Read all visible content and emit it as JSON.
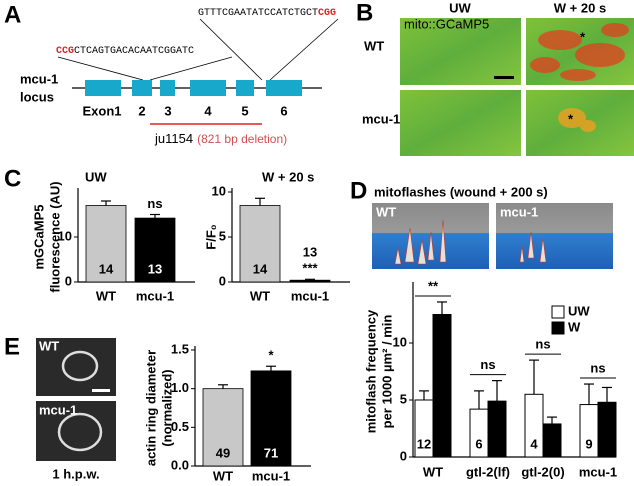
{
  "panels": {
    "labels": [
      "A",
      "B",
      "C",
      "D",
      "E"
    ],
    "a": {
      "seq_top": "GTTTCGAATATCCATCTGCT",
      "seq_top_pam": "CGG",
      "seq_bottom_pam": "CCG",
      "seq_bottom": "CTCAGTGACACAATCGGATC",
      "locus": [
        "mcu-1",
        "locus"
      ],
      "exons": [
        "Exon1",
        "2",
        "3",
        "4",
        "5",
        "6"
      ],
      "allele": "ju1154",
      "deletion": "(821 bp deletion)"
    },
    "b": {
      "columns": [
        "UW",
        "W + 20 s"
      ],
      "rows": [
        "WT",
        "mcu-1"
      ],
      "reporter": "mito::GCaMP5",
      "markers": [
        "*",
        "*"
      ]
    },
    "d": {
      "title": "mitoflashes (wound + 200 s)",
      "images": [
        "WT",
        "mcu-1"
      ]
    },
    "e": {
      "images": [
        "WT",
        "mcu-1"
      ],
      "caption": "1 h.p.w."
    }
  },
  "chart_data": [
    {
      "type": "bar",
      "title": "UW",
      "ylabel": [
        "mGCaMP5",
        "fluorescence (AU)"
      ],
      "categories": [
        "WT",
        "mcu-1"
      ],
      "values": [
        17,
        14.2
      ],
      "errors": [
        1,
        0.8
      ],
      "colors": [
        "#c8c8c8",
        "#000000"
      ],
      "n_labels": [
        "14",
        "13"
      ],
      "significance": [
        null,
        "ns"
      ],
      "ylim": [
        0,
        20
      ],
      "yticks": [
        0,
        10
      ]
    },
    {
      "type": "bar",
      "title": "W + 20 s",
      "ylabel": [
        "F/F₀"
      ],
      "categories": [
        "WT",
        "mcu-1"
      ],
      "values": [
        8.5,
        0.2
      ],
      "errors": [
        0.8,
        0.1
      ],
      "colors": [
        "#c8c8c8",
        "#000000"
      ],
      "n_labels": [
        "14",
        "13"
      ],
      "significance": [
        null,
        "***"
      ],
      "ylim": [
        0,
        10
      ],
      "yticks": [
        0,
        5,
        10
      ]
    },
    {
      "type": "grouped-bar",
      "ylabel": [
        "mitoflash frequency",
        "per 1000 µm² / min"
      ],
      "categories": [
        "WT",
        "gtl-2(lf)",
        "gtl-2(0)",
        "mcu-1"
      ],
      "series": [
        {
          "name": "UW",
          "color": "#ffffff",
          "values": [
            5,
            4.2,
            5.5,
            4.6
          ],
          "errors": [
            0.8,
            1.6,
            3,
            1.8
          ]
        },
        {
          "name": "W",
          "color": "#000000",
          "values": [
            12.5,
            4.9,
            2.9,
            4.8
          ],
          "errors": [
            1.1,
            1.8,
            0.6,
            1.3
          ]
        }
      ],
      "n_labels": [
        "12",
        "6",
        "4",
        "9"
      ],
      "significance": [
        "**",
        "ns",
        "ns",
        "ns"
      ],
      "legend": "upper right",
      "ylim": [
        0,
        15
      ],
      "yticks": [
        0,
        5,
        10
      ]
    },
    {
      "type": "bar",
      "ylabel": [
        "actin ring diameter",
        "(normalized)"
      ],
      "categories": [
        "WT",
        "mcu-1"
      ],
      "values": [
        1.0,
        1.23
      ],
      "errors": [
        0.05,
        0.06
      ],
      "colors": [
        "#c8c8c8",
        "#000000"
      ],
      "n_labels": [
        "49",
        "71"
      ],
      "significance": [
        null,
        "*"
      ],
      "ylim": [
        0,
        1.5
      ],
      "yticks": [
        {
          "value": 0,
          "label": "0.0"
        },
        0.5,
        {
          "value": 1,
          "label": "1.0"
        },
        1.5
      ]
    }
  ]
}
